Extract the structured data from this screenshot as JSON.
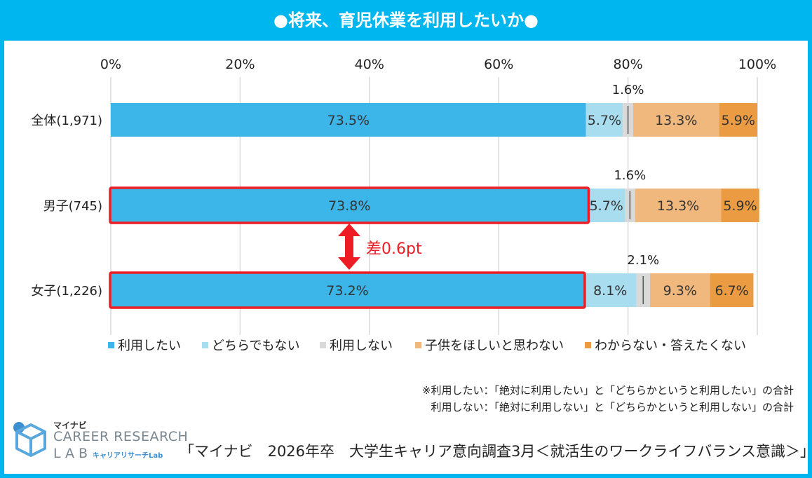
{
  "header": {
    "title": "●将来、育児休業を利用したいか●"
  },
  "chart_data": {
    "type": "bar",
    "orientation": "horizontal",
    "stacked": true,
    "xlim": [
      0,
      100
    ],
    "xticks": [
      "0%",
      "20%",
      "40%",
      "60%",
      "80%",
      "100%"
    ],
    "grid": true,
    "legend_position": "bottom",
    "categories": [
      "全体(1,971)",
      "男子(745)",
      "女子(1,226)"
    ],
    "series": [
      {
        "name": "利用したい",
        "color": "#3cb5e8",
        "values": [
          73.5,
          73.8,
          73.2
        ],
        "labels": [
          "73.5%",
          "73.8%",
          "73.2%"
        ]
      },
      {
        "name": "どちらでもない",
        "color": "#a8dcef",
        "values": [
          5.7,
          5.7,
          8.1
        ],
        "labels": [
          "5.7%",
          "5.7%",
          "8.1%"
        ]
      },
      {
        "name": "利用しない",
        "color": "#d9d9d9",
        "values": [
          1.6,
          1.6,
          2.1
        ],
        "labels": [
          "1.6%",
          "1.6%",
          "2.1%"
        ]
      },
      {
        "name": "子供をほしいと思わない",
        "color": "#f1b87e",
        "values": [
          13.3,
          13.3,
          9.3
        ],
        "labels": [
          "13.3%",
          "13.3%",
          "9.3%"
        ]
      },
      {
        "name": "わからない・答えたくない",
        "color": "#eb9b42",
        "values": [
          5.9,
          5.9,
          6.7
        ],
        "labels": [
          "5.9%",
          "5.9%",
          "6.7%"
        ]
      }
    ],
    "highlighted_categories": [
      "男子(745)",
      "女子(1,226)"
    ],
    "annotation": {
      "text": "差0.6pt",
      "color": "#ee1c25"
    }
  },
  "notes": {
    "line1": "※利用したい：「絶対に利用したい」と「どちらかというと利用したい」の合計",
    "line2": "利用しない：「絶対に利用しない」と「どちらかというと利用しない」の合計"
  },
  "footer": {
    "source": "「マイナビ　2026年卒　大学生キャリア意向調査3月＜就活生のワークライフバランス意識＞」"
  },
  "logo": {
    "brand": "マイナビ",
    "line1": "CAREER RESEARCH",
    "line2": "LAB",
    "sub": "キャリアリサーチLab"
  }
}
